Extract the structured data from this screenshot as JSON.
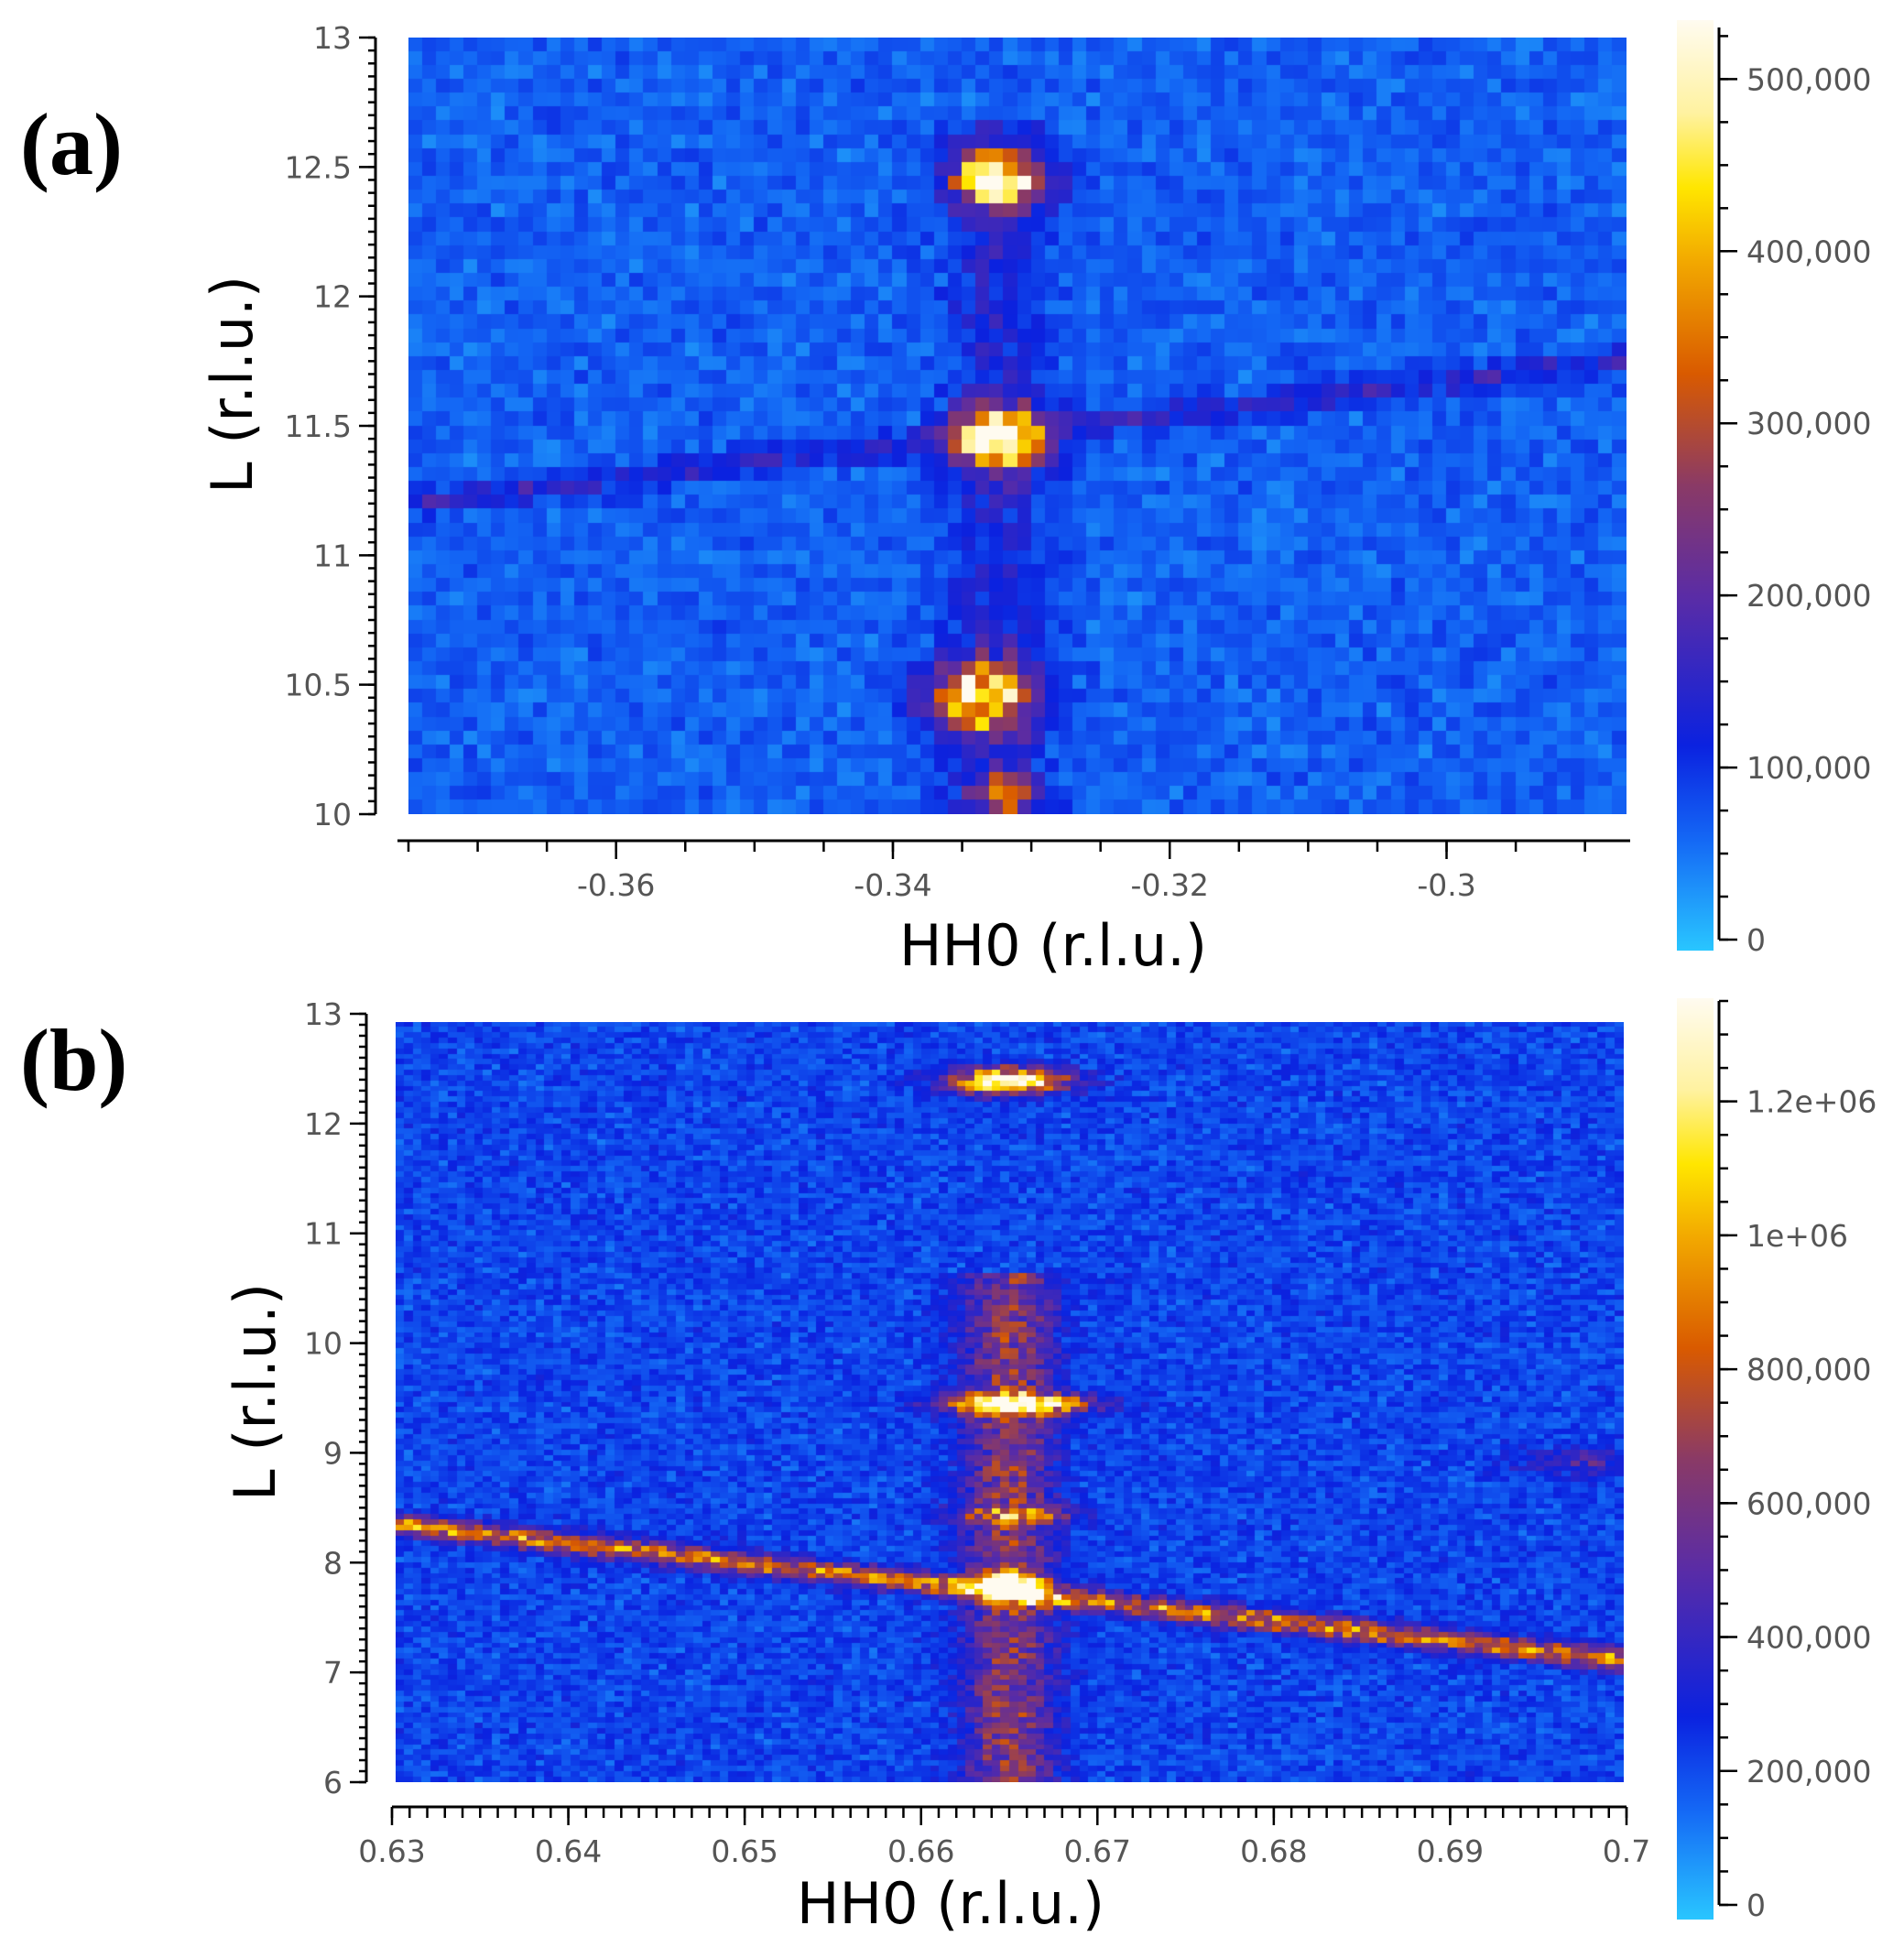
{
  "colors": {
    "stops": [
      "#29c6ff",
      "#1467f5",
      "#0b22e0",
      "#5a2ca6",
      "#8a3a66",
      "#d95a00",
      "#f2a800",
      "#ffe600",
      "#fff2a0",
      "#fffbf0"
    ]
  },
  "chart_data": [
    {
      "type": "heatmap",
      "panel_label": "(a)",
      "title": "",
      "xlabel": "HH0 (r.l.u.)",
      "ylabel": "L (r.l.u.)",
      "xlim": [
        -0.375,
        -0.287
      ],
      "ylim": [
        10,
        13
      ],
      "x_ticks": [
        "-0.36",
        "-0.34",
        "-0.32",
        "-0.3"
      ],
      "x_tick_values": [
        -0.36,
        -0.34,
        -0.32,
        -0.3
      ],
      "y_ticks": [
        "10",
        "10.5",
        "11",
        "11.5",
        "12",
        "12.5",
        "13"
      ],
      "y_tick_values": [
        10,
        10.5,
        11,
        11.5,
        12,
        12.5,
        13
      ],
      "colorbar": {
        "min": 0,
        "max": 530000,
        "tick_labels": [
          "0",
          "100,000",
          "200,000",
          "300,000",
          "400,000",
          "500,000"
        ],
        "tick_values": [
          0,
          100000,
          200000,
          300000,
          400000,
          500000
        ]
      },
      "grid_cols": 88,
      "grid_rows": 56,
      "background": [
        {
          "xmin": -0.375,
          "xmax": -0.287,
          "ymin": 10,
          "ymax": 13,
          "value": 70000
        }
      ],
      "features": [
        {
          "kind": "peak",
          "x": -0.3323,
          "y": 12.45,
          "sx": 0.0022,
          "sy": 0.07,
          "amp": 470000
        },
        {
          "kind": "peak",
          "x": -0.3323,
          "y": 11.45,
          "sx": 0.0022,
          "sy": 0.08,
          "amp": 440000
        },
        {
          "kind": "peak",
          "x": -0.3337,
          "y": 10.45,
          "sx": 0.0025,
          "sy": 0.09,
          "amp": 410000
        },
        {
          "kind": "peak",
          "x": -0.3318,
          "y": 10.08,
          "sx": 0.0018,
          "sy": 0.05,
          "amp": 230000
        },
        {
          "kind": "line",
          "x1": -0.375,
          "y1": 11.2,
          "x2": -0.287,
          "y2": 11.75,
          "width": 0.035,
          "amp": 80000
        },
        {
          "kind": "vstreak",
          "x": -0.3325,
          "ymin": 10,
          "ymax": 12.7,
          "sx": 0.0025,
          "amp": 60000
        }
      ]
    },
    {
      "type": "heatmap",
      "panel_label": "(b)",
      "title": "",
      "xlabel": "HH0 (r.l.u.)",
      "ylabel": "L (r.l.u.)",
      "xlim": [
        0.63,
        0.7
      ],
      "ylim": [
        6,
        13
      ],
      "x_ticks": [
        "0.63",
        "0.64",
        "0.65",
        "0.66",
        "0.67",
        "0.68",
        "0.69",
        "0.7"
      ],
      "x_tick_values": [
        0.63,
        0.64,
        0.65,
        0.66,
        0.67,
        0.68,
        0.69,
        0.7
      ],
      "y_ticks": [
        "6",
        "7",
        "8",
        "9",
        "10",
        "11",
        "12",
        "13"
      ],
      "y_tick_values": [
        6,
        7,
        8,
        9,
        10,
        11,
        12,
        13
      ],
      "colorbar": {
        "min": 0,
        "max": 1350000,
        "tick_labels": [
          "0",
          "200,000",
          "400,000",
          "600,000",
          "800,000",
          "1e+06",
          "1.2e+06"
        ],
        "tick_values": [
          0,
          200000,
          400000,
          600000,
          800000,
          1000000,
          1200000
        ]
      },
      "grid_cols": 140,
      "grid_rows": 142,
      "background": [
        {
          "xmin": 0.63,
          "xmax": 0.7,
          "ymin": 6,
          "ymax": 13,
          "value": 230000
        }
      ],
      "features": [
        {
          "kind": "peak",
          "x": 0.665,
          "y": 12.45,
          "sx": 0.0022,
          "sy": 0.08,
          "amp": 1250000
        },
        {
          "kind": "peak",
          "x": 0.6655,
          "y": 9.48,
          "sx": 0.0028,
          "sy": 0.06,
          "amp": 1150000
        },
        {
          "kind": "peak",
          "x": 0.665,
          "y": 7.8,
          "sx": 0.0012,
          "sy": 0.08,
          "amp": 900000
        },
        {
          "kind": "line",
          "x1": 0.63,
          "y1": 8.37,
          "x2": 0.7,
          "y2": 7.12,
          "width": 0.07,
          "amp": 650000
        },
        {
          "kind": "vstreak",
          "x": 0.665,
          "ymin": 6,
          "ymax": 10.7,
          "sx": 0.0018,
          "amp": 420000
        },
        {
          "kind": "peak",
          "x": 0.6655,
          "y": 8.45,
          "sx": 0.0025,
          "sy": 0.06,
          "amp": 400000
        },
        {
          "kind": "peak",
          "x": 0.698,
          "y": 8.95,
          "sx": 0.003,
          "sy": 0.08,
          "amp": 230000
        }
      ]
    }
  ]
}
